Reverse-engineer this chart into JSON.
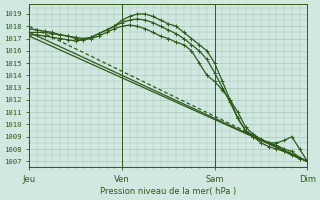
{
  "bg_color": "#d0e8e0",
  "grid_color": "#a8c8c0",
  "line_color": "#2d5a1b",
  "ylabel_values": [
    1007,
    1008,
    1009,
    1010,
    1011,
    1012,
    1013,
    1014,
    1015,
    1016,
    1017,
    1018,
    1019
  ],
  "ylim": [
    1006.5,
    1019.8
  ],
  "xlabel": "Pression niveau de la mer( hPa )",
  "xtick_labels": [
    "Jeu",
    "Ven",
    "Sam",
    "Dim"
  ],
  "xtick_positions": [
    0,
    72,
    144,
    216
  ],
  "xlim": [
    0,
    216
  ],
  "series": [
    {
      "x": [
        0,
        216
      ],
      "y": [
        1017.2,
        1007.0
      ],
      "marker": false,
      "lw": 0.9,
      "dashes": []
    },
    {
      "x": [
        0,
        216
      ],
      "y": [
        1017.5,
        1007.0
      ],
      "marker": false,
      "lw": 0.9,
      "dashes": []
    },
    {
      "x": [
        0,
        216
      ],
      "y": [
        1018.0,
        1007.0
      ],
      "marker": false,
      "lw": 0.9,
      "dashes": [
        3,
        2
      ]
    },
    {
      "x": [
        0,
        6,
        12,
        18,
        24,
        30,
        36,
        42,
        48,
        54,
        60,
        66,
        72,
        78,
        84,
        90,
        96,
        102,
        108,
        114,
        120,
        126,
        132,
        138,
        144,
        150,
        156,
        162,
        168,
        174,
        180,
        186,
        192,
        198,
        204,
        210,
        216
      ],
      "y": [
        1017.5,
        1017.5,
        1017.5,
        1017.4,
        1017.3,
        1017.2,
        1017.1,
        1017.0,
        1017.1,
        1017.4,
        1017.7,
        1018.0,
        1018.5,
        1018.8,
        1019.0,
        1019.0,
        1018.8,
        1018.5,
        1018.2,
        1018.0,
        1017.5,
        1017.0,
        1016.5,
        1016.0,
        1015.0,
        1013.5,
        1012.0,
        1010.5,
        1009.5,
        1009.0,
        1008.5,
        1008.2,
        1008.0,
        1007.8,
        1007.5,
        1007.2,
        1007.0
      ],
      "marker": true,
      "lw": 0.9,
      "dashes": []
    },
    {
      "x": [
        0,
        6,
        12,
        18,
        24,
        30,
        36,
        42,
        48,
        54,
        60,
        66,
        72,
        78,
        84,
        90,
        96,
        102,
        108,
        114,
        120,
        126,
        132,
        138,
        144,
        150,
        156,
        162,
        168,
        174,
        180,
        186,
        192,
        198,
        204,
        210,
        216
      ],
      "y": [
        1017.3,
        1017.3,
        1017.2,
        1017.1,
        1017.0,
        1016.9,
        1016.8,
        1016.9,
        1017.1,
        1017.4,
        1017.7,
        1018.0,
        1018.3,
        1018.5,
        1018.6,
        1018.5,
        1018.3,
        1018.0,
        1017.7,
        1017.4,
        1017.0,
        1016.5,
        1016.0,
        1015.3,
        1014.2,
        1013.0,
        1011.8,
        1010.5,
        1009.5,
        1009.0,
        1008.7,
        1008.5,
        1008.5,
        1008.7,
        1009.0,
        1008.0,
        1007.0
      ],
      "marker": true,
      "lw": 0.9,
      "dashes": []
    },
    {
      "x": [
        0,
        6,
        12,
        18,
        24,
        30,
        36,
        42,
        48,
        54,
        60,
        66,
        72,
        78,
        84,
        90,
        96,
        102,
        108,
        114,
        120,
        126,
        132,
        138,
        144,
        150,
        156,
        162,
        168,
        174,
        180,
        186,
        192,
        198,
        204,
        210,
        216
      ],
      "y": [
        1017.8,
        1017.7,
        1017.6,
        1017.5,
        1017.3,
        1017.2,
        1017.0,
        1016.9,
        1017.0,
        1017.2,
        1017.5,
        1017.8,
        1018.0,
        1018.1,
        1018.0,
        1017.8,
        1017.5,
        1017.2,
        1017.0,
        1016.7,
        1016.5,
        1016.0,
        1015.0,
        1014.0,
        1013.5,
        1012.8,
        1012.0,
        1011.0,
        1009.8,
        1009.2,
        1008.8,
        1008.5,
        1008.3,
        1008.0,
        1007.8,
        1007.3,
        1007.0
      ],
      "marker": true,
      "lw": 0.9,
      "dashes": []
    }
  ]
}
